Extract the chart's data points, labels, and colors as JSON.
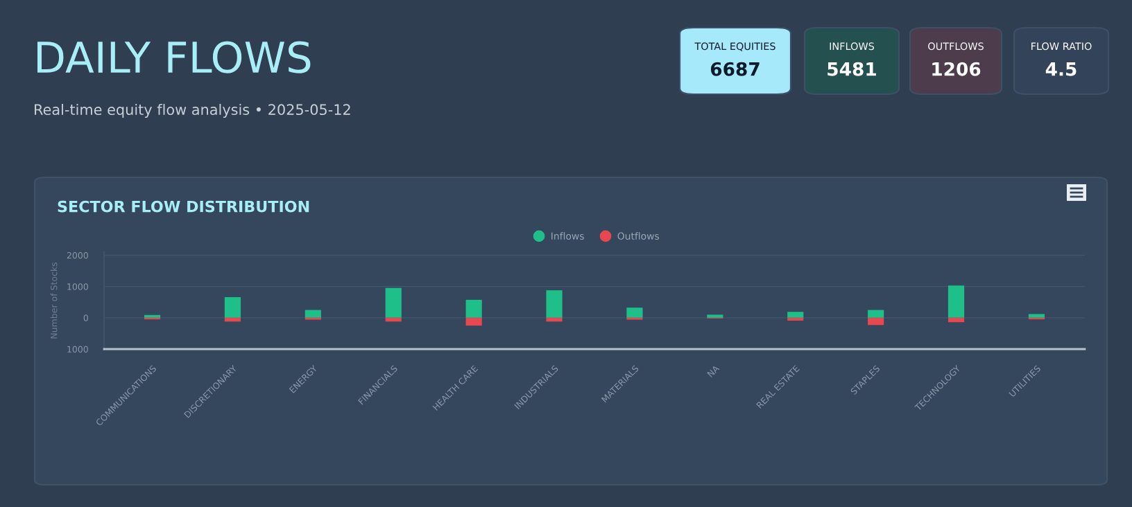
{
  "chart_data": [
    {
      "type": "other",
      "title": "DAILY FLOWS",
      "subtitle": "Real-time equity flow analysis • 2025-05-12",
      "annotations": [
        "TOTAL EQUITIES",
        "6687",
        "INFLOWS",
        "5481",
        "OUTFLOWS",
        "1206",
        "FLOW RATIO",
        "4.5"
      ]
    },
    {
      "type": "bar",
      "title": "SECTOR FLOW DISTRIBUTION",
      "ylabel": "Number of Stocks",
      "stacked": true,
      "categories": [
        "COMMUNICATIONS",
        "DISCRETIONARY",
        "ENERGY",
        "FINANCIALS",
        "HEALTH CARE",
        "INDUSTRIALS",
        "MATERIALS",
        "NA",
        "REAL ESTATE",
        "STAPLES",
        "TECHNOLOGY",
        "UTILITIES"
      ],
      "series": [
        {
          "name": "Inflows",
          "color": "#1fbf8a",
          "values": [
            90,
            660,
            250,
            955,
            575,
            880,
            325,
            100,
            190,
            250,
            1030,
            120
          ]
        },
        {
          "name": "Outflows",
          "color": "#e8474f",
          "values": [
            -50,
            -120,
            -60,
            -120,
            -250,
            -120,
            -60,
            -20,
            -90,
            -230,
            -140,
            -50
          ]
        }
      ],
      "ylim": [
        -1000,
        2100
      ],
      "yticks": [
        {
          "value": -1000,
          "label": "1000"
        },
        0,
        1000,
        2000
      ],
      "grid": "y",
      "legend": "top"
    }
  ]
}
